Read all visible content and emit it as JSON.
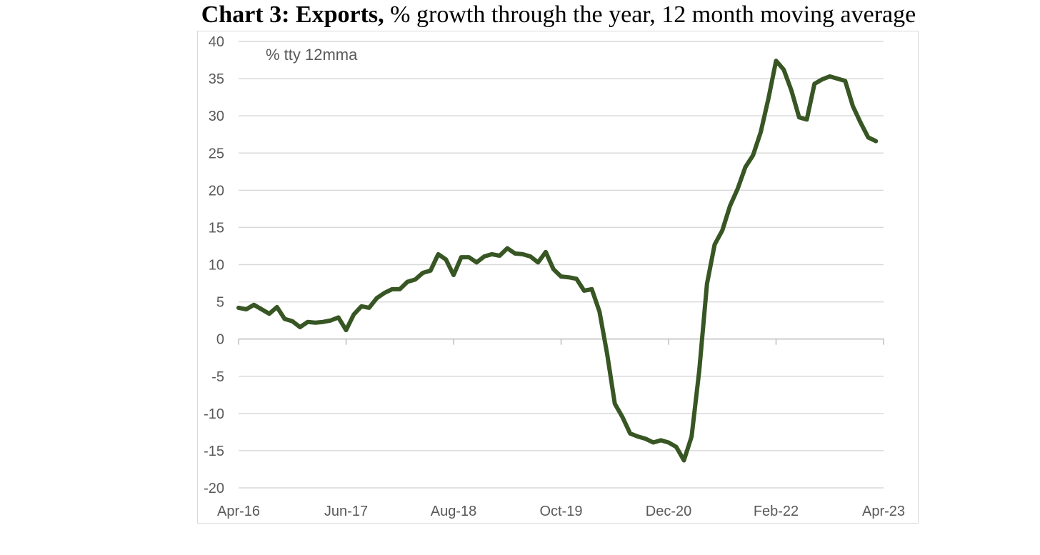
{
  "title": {
    "bold": "Chart 3: Exports,",
    "rest": " % growth through the year, 12 month moving average"
  },
  "chart_data": {
    "type": "line",
    "title": "Chart 3: Exports, % growth through the year, 12 month moving average",
    "annotation": "% tty 12mma",
    "xlabel": "",
    "ylabel": "",
    "ylim": [
      -20,
      40
    ],
    "yticks": [
      40,
      35,
      30,
      25,
      20,
      15,
      10,
      5,
      0,
      -5,
      -10,
      -15,
      -20
    ],
    "xtick_labels": [
      "Apr-16",
      "Jun-17",
      "Aug-18",
      "Oct-19",
      "Dec-20",
      "Feb-22",
      "Apr-23"
    ],
    "grid": "horizontal",
    "line_color": "#375623",
    "series": [
      {
        "x": [
          "Apr-16",
          "May-16",
          "Jun-16",
          "Jul-16",
          "Aug-16",
          "Sep-16",
          "Oct-16",
          "Nov-16",
          "Dec-16",
          "Jan-17",
          "Feb-17",
          "Mar-17",
          "Apr-17",
          "May-17",
          "Jun-17",
          "Jul-17",
          "Aug-17",
          "Sep-17",
          "Oct-17",
          "Nov-17",
          "Dec-17",
          "Jan-18",
          "Feb-18",
          "Mar-18",
          "Apr-18",
          "May-18",
          "Jun-18",
          "Jul-18",
          "Aug-18",
          "Sep-18",
          "Oct-18",
          "Nov-18",
          "Dec-18",
          "Jan-19",
          "Feb-19",
          "Mar-19",
          "Apr-19",
          "May-19",
          "Jun-19",
          "Jul-19",
          "Aug-19",
          "Sep-19",
          "Oct-19",
          "Nov-19",
          "Dec-19",
          "Jan-20",
          "Feb-20",
          "Mar-20",
          "Apr-20",
          "May-20",
          "Jun-20",
          "Jul-20",
          "Aug-20",
          "Sep-20",
          "Oct-20",
          "Nov-20",
          "Dec-20",
          "Jan-21",
          "Feb-21",
          "Mar-21",
          "Apr-21",
          "May-21",
          "Jun-21",
          "Jul-21",
          "Aug-21",
          "Sep-21",
          "Oct-21",
          "Nov-21",
          "Dec-21",
          "Jan-22",
          "Feb-22",
          "Mar-22",
          "Apr-22",
          "May-22",
          "Jun-22",
          "Jul-22",
          "Aug-22",
          "Sep-22",
          "Oct-22",
          "Nov-22",
          "Dec-22",
          "Jan-23",
          "Feb-23",
          "Mar-23"
        ],
        "values": [
          4.2,
          4.0,
          4.6,
          4.0,
          3.4,
          4.3,
          2.7,
          2.4,
          1.6,
          2.3,
          2.2,
          2.3,
          2.5,
          2.9,
          1.2,
          3.3,
          4.4,
          4.2,
          5.5,
          6.2,
          6.7,
          6.7,
          7.7,
          8.0,
          8.9,
          9.2,
          11.4,
          10.7,
          8.6,
          11.0,
          11.0,
          10.3,
          11.1,
          11.4,
          11.2,
          12.2,
          11.5,
          11.4,
          11.1,
          10.3,
          11.7,
          9.4,
          8.4,
          8.3,
          8.1,
          6.5,
          6.7,
          3.7,
          -2.0,
          -8.7,
          -10.5,
          -12.7,
          -13.1,
          -13.4,
          -13.9,
          -13.6,
          -13.9,
          -14.5,
          -16.3,
          -13.1,
          -4.2,
          7.4,
          12.7,
          14.6,
          17.9,
          20.2,
          23.1,
          24.7,
          27.8,
          32.3,
          37.4,
          36.2,
          33.4,
          29.8,
          29.5,
          34.3,
          34.9,
          35.3,
          35.0,
          34.7,
          31.3,
          29.1,
          27.1,
          26.6
        ]
      }
    ]
  }
}
